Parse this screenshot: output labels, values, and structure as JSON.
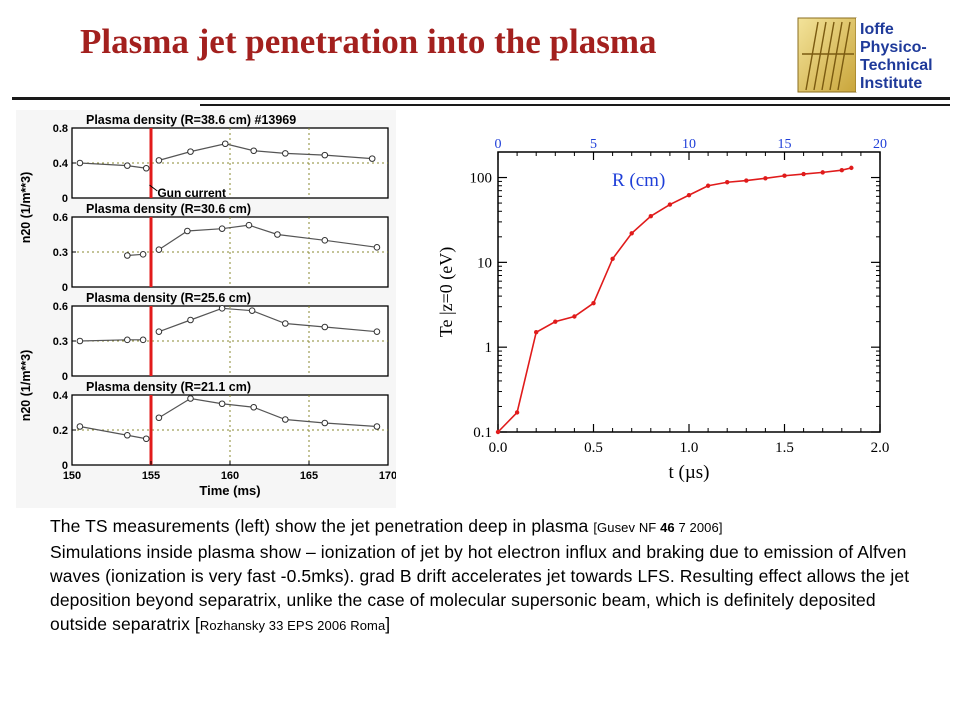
{
  "slide": {
    "title": "Plasma jet penetration into the plasma",
    "logo_lines": [
      "Ioffe",
      "Physico-",
      "Technical",
      "Institute"
    ]
  },
  "left_figure": {
    "panels": [
      {
        "title": "Plasma density (R=38.6 cm) #13969",
        "yticks": [
          "0.8",
          "0.4",
          "0"
        ]
      },
      {
        "title": "Plasma density (R=30.6 cm)",
        "yticks": [
          "0.6",
          "0.3",
          "0"
        ]
      },
      {
        "title": "Plasma density (R=25.6 cm)",
        "yticks": [
          "0.6",
          "0.3",
          "0"
        ]
      },
      {
        "title": "Plasma density (R=21.1 cm)",
        "yticks": [
          "0.4",
          "0.2",
          "0"
        ]
      }
    ],
    "ylabel_top": "n20 (1/m**3)",
    "ylabel_bottom": "n20 (1/m**3)",
    "annotation": "Gun current",
    "xticks": [
      "150",
      "155",
      "160",
      "165",
      "170"
    ],
    "xlabel": "Time (ms)",
    "gun_line_color": "#e21a1a"
  },
  "chart_data": [
    {
      "type": "line",
      "title": "",
      "xlabel": "Time (ms)",
      "ylabel": "n20 (1/m**3)",
      "xlim": [
        150,
        170
      ],
      "series": [
        {
          "name": "Plasma density (R=38.6 cm) #13969",
          "ylim": [
            0,
            0.8
          ],
          "segments": [
            {
              "x": [
                150.5,
                153.5,
                154.7
              ],
              "y": [
                0.4,
                0.37,
                0.34
              ]
            },
            {
              "x": [
                155.5,
                157.5,
                159.7,
                161.5,
                163.5,
                166,
                169
              ],
              "y": [
                0.43,
                0.53,
                0.62,
                0.54,
                0.51,
                0.49,
                0.45
              ]
            }
          ]
        },
        {
          "name": "Plasma density (R=30.6 cm)",
          "ylim": [
            0,
            0.6
          ],
          "segments": [
            {
              "x": [
                153.5,
                154.5
              ],
              "y": [
                0.27,
                0.28
              ]
            },
            {
              "x": [
                155.5,
                157.3,
                159.5,
                161.2,
                163,
                166,
                169.3
              ],
              "y": [
                0.32,
                0.48,
                0.5,
                0.53,
                0.45,
                0.4,
                0.34
              ]
            }
          ]
        },
        {
          "name": "Plasma density (R=25.6 cm)",
          "ylim": [
            0,
            0.6
          ],
          "segments": [
            {
              "x": [
                150.5,
                153.5,
                154.5
              ],
              "y": [
                0.3,
                0.31,
                0.31
              ]
            },
            {
              "x": [
                155.5,
                157.5,
                159.5,
                161.4,
                163.5,
                166,
                169.3
              ],
              "y": [
                0.38,
                0.48,
                0.58,
                0.56,
                0.45,
                0.42,
                0.38
              ]
            }
          ]
        },
        {
          "name": "Plasma density (R=21.1 cm)",
          "ylim": [
            0,
            0.4
          ],
          "segments": [
            {
              "x": [
                150.5,
                153.5,
                154.7
              ],
              "y": [
                0.22,
                0.17,
                0.15
              ]
            },
            {
              "x": [
                155.5,
                157.5,
                159.5,
                161.5,
                163.5,
                166,
                169.3
              ],
              "y": [
                0.27,
                0.38,
                0.35,
                0.33,
                0.26,
                0.24,
                0.22
              ]
            }
          ]
        }
      ],
      "annotations": [
        "Gun current"
      ],
      "vertical_marker_x": 155,
      "grid": true
    },
    {
      "type": "line",
      "title": "",
      "xlabel": "t  (µs)",
      "ylabel": "Te |z=0 (eV)",
      "top_axis_label": "R  (cm)",
      "xlim": [
        0.0,
        2.0
      ],
      "ylim": [
        0.1,
        200
      ],
      "yscale": "log",
      "xticks": [
        "0.0",
        "0.5",
        "1.0",
        "1.5",
        "2.0"
      ],
      "yticks": [
        "0.1",
        "1",
        "10",
        "100"
      ],
      "top_xticks": [
        "0",
        "5",
        "10",
        "15",
        "20"
      ],
      "grid": false,
      "color": "#e01b1b",
      "top_axis_color": "#1f3fd8",
      "series": [
        {
          "x": [
            0.0,
            0.1,
            0.2,
            0.3,
            0.4,
            0.5,
            0.6,
            0.7,
            0.8,
            0.9,
            1.0,
            1.1,
            1.2,
            1.3,
            1.4,
            1.5,
            1.6,
            1.7,
            1.8,
            1.85
          ],
          "y": [
            0.1,
            0.17,
            1.5,
            2.0,
            2.3,
            3.3,
            11,
            22,
            35,
            48,
            62,
            80,
            88,
            92,
            98,
            105,
            110,
            115,
            122,
            130
          ]
        }
      ]
    }
  ],
  "caption": {
    "line1_main": "The TS measurements (left) show the jet penetration deep in plasma ",
    "line1_ref_a": "[Gusev NF ",
    "line1_ref_b": "46",
    "line1_ref_c": " 7 2006]",
    "body": "Simulations inside plasma  show – ionization of jet  by hot electron influx and braking due to emission of Alfven waves (ionization is very fast -0.5mks). grad B drift accelerates jet towards LFS. Resulting effect allows the jet deposition  beyond separatrix, unlike the case of molecular supersonic beam, which is definitely deposited outside separatrix ",
    "ref2_open": "[",
    "ref2": "Rozhansky 33 EPS 2006 Roma",
    "ref2_close": "]"
  }
}
